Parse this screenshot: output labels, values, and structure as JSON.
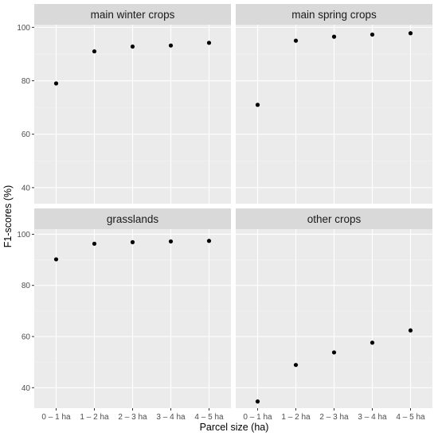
{
  "chart_data": {
    "type": "scatter",
    "layout": "facet-grid-2x2",
    "xlabel": "Parcel size (ha)",
    "ylabel": "F1-scores (%)",
    "categories": [
      "0 – 1 ha",
      "1 – 2 ha",
      "2 – 3 ha",
      "3 – 4 ha",
      "4 – 5 ha"
    ],
    "point_color": "#000000",
    "panel_bg_color": "#ebebeb",
    "strip_bg_color": "#d9d9d9",
    "grid": true,
    "panels": [
      {
        "title": "main winter crops",
        "ylim": [
          34,
          101
        ],
        "yticks": [
          40,
          60,
          80,
          100
        ],
        "values": [
          79.0,
          91.0,
          92.8,
          93.2,
          94.2
        ]
      },
      {
        "title": "main spring crops",
        "ylim": [
          34,
          101
        ],
        "yticks": [
          40,
          60,
          80,
          100
        ],
        "values": [
          71.0,
          95.0,
          96.5,
          97.3,
          97.8
        ]
      },
      {
        "title": "grasslands",
        "ylim": [
          32,
          102
        ],
        "yticks": [
          40,
          60,
          80,
          100
        ],
        "values": [
          90.2,
          96.3,
          96.9,
          97.2,
          97.4
        ]
      },
      {
        "title": "other crops",
        "ylim": [
          32,
          102
        ],
        "yticks": [
          40,
          60,
          80,
          100
        ],
        "values": [
          34.6,
          48.9,
          53.8,
          57.6,
          62.4
        ]
      }
    ]
  }
}
